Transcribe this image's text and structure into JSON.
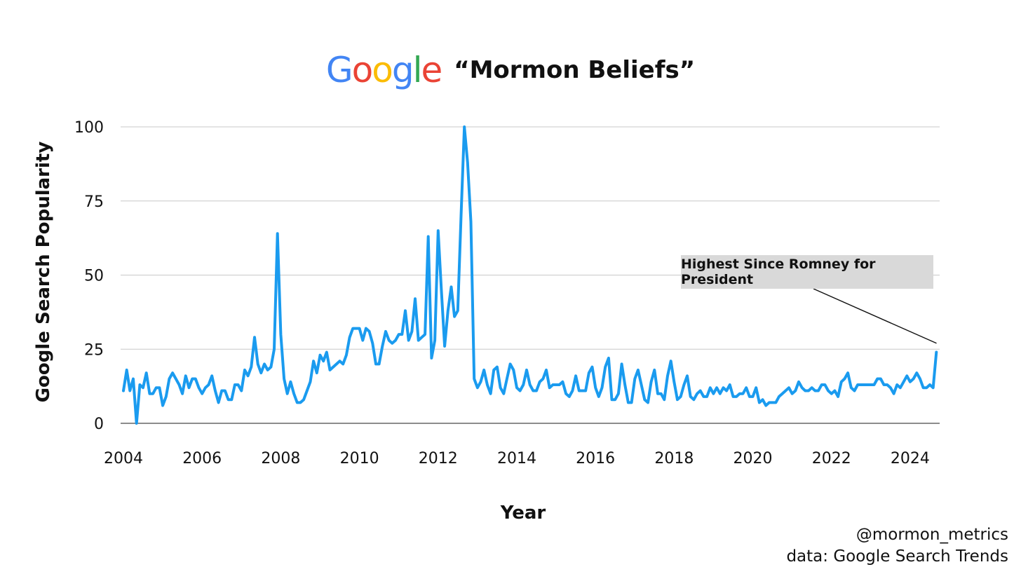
{
  "header": {
    "logo_letters": [
      {
        "char": "G",
        "color": "#4285F4"
      },
      {
        "char": "o",
        "color": "#EA4335"
      },
      {
        "char": "o",
        "color": "#FBBC05"
      },
      {
        "char": "g",
        "color": "#4285F4"
      },
      {
        "char": "l",
        "color": "#34A853"
      },
      {
        "char": "e",
        "color": "#EA4335"
      }
    ],
    "title": "“Mormon Beliefs”"
  },
  "credit": {
    "handle": "@mormon_metrics",
    "source": "data: Google Search Trends"
  },
  "chart_data": {
    "type": "line",
    "xlabel": "Year",
    "ylabel": "Google Search Popularity",
    "xlim": [
      2004,
      2024.75
    ],
    "ylim": [
      0,
      100
    ],
    "xticks": [
      "2004",
      "2006",
      "2008",
      "2010",
      "2012",
      "2014",
      "2016",
      "2018",
      "2020",
      "2022",
      "2024"
    ],
    "yticks": [
      "0",
      "25",
      "50",
      "75",
      "100"
    ],
    "grid": "horizontal",
    "line_color": "#1A9BEF",
    "annotation": {
      "text": "Highest Since Romney for President",
      "points_to_x": 2024.67,
      "points_to_y": 27
    },
    "x_start": "2004-01",
    "x_step": "monthly",
    "values": [
      11,
      18,
      11,
      15,
      0,
      13,
      12,
      17,
      10,
      10,
      12,
      12,
      6,
      9,
      15,
      17,
      15,
      13,
      10,
      16,
      12,
      15,
      15,
      12,
      10,
      12,
      13,
      16,
      11,
      7,
      11,
      11,
      8,
      8,
      13,
      13,
      11,
      18,
      16,
      19,
      29,
      20,
      17,
      20,
      18,
      19,
      25,
      64,
      30,
      15,
      10,
      14,
      10,
      7,
      7,
      8,
      11,
      14,
      21,
      17,
      23,
      21,
      24,
      18,
      19,
      20,
      21,
      20,
      23,
      29,
      32,
      32,
      32,
      28,
      32,
      31,
      27,
      20,
      20,
      26,
      31,
      28,
      27,
      28,
      30,
      30,
      38,
      28,
      31,
      42,
      28,
      29,
      30,
      63,
      22,
      28,
      65,
      45,
      26,
      38,
      46,
      36,
      38,
      70,
      100,
      88,
      68,
      15,
      12,
      14,
      18,
      13,
      10,
      18,
      19,
      12,
      10,
      15,
      20,
      18,
      12,
      11,
      13,
      18,
      13,
      11,
      11,
      14,
      15,
      18,
      12,
      13,
      13,
      13,
      14,
      10,
      9,
      11,
      16,
      11,
      11,
      11,
      17,
      19,
      12,
      9,
      12,
      19,
      22,
      8,
      8,
      10,
      20,
      13,
      7,
      7,
      15,
      18,
      13,
      8,
      7,
      14,
      18,
      10,
      10,
      8,
      16,
      21,
      14,
      8,
      9,
      13,
      16,
      9,
      8,
      10,
      11,
      9,
      9,
      12,
      10,
      12,
      10,
      12,
      11,
      13,
      9,
      9,
      10,
      10,
      12,
      9,
      9,
      12,
      7,
      8,
      6,
      7,
      7,
      7,
      9,
      10,
      11,
      12,
      10,
      11,
      14,
      12,
      11,
      11,
      12,
      11,
      11,
      13,
      13,
      11,
      10,
      11,
      9,
      14,
      15,
      17,
      12,
      11,
      13,
      13,
      13,
      13,
      13,
      13,
      15,
      15,
      13,
      13,
      12,
      10,
      13,
      12,
      14,
      16,
      14,
      15,
      17,
      15,
      12,
      12,
      13,
      12,
      24
    ]
  }
}
